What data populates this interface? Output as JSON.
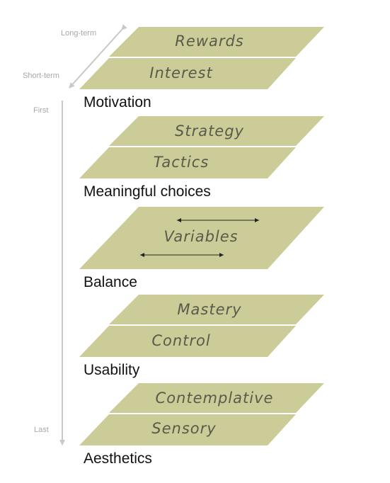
{
  "axes": {
    "long_term": "Long-term",
    "short_term": "Short-term",
    "first": "First",
    "last": "Last"
  },
  "groups": {
    "motivation": {
      "title": "Motivation",
      "layers": [
        "Rewards",
        "Interest"
      ]
    },
    "meaningful_choices": {
      "title": "Meaningful choices",
      "layers": [
        "Strategy",
        "Tactics"
      ]
    },
    "balance": {
      "title": "Balance",
      "layers": [
        "Variables"
      ]
    },
    "usability": {
      "title": "Usability",
      "layers": [
        "Mastery",
        "Control"
      ]
    },
    "aesthetics": {
      "title": "Aesthetics",
      "layers": [
        "Contemplative",
        "Sensory"
      ]
    }
  },
  "colors": {
    "layer_fill": "#cccc99",
    "layer_text": "#5a5a4a",
    "axis": "#c8c8c8",
    "title_text": "#111111"
  }
}
